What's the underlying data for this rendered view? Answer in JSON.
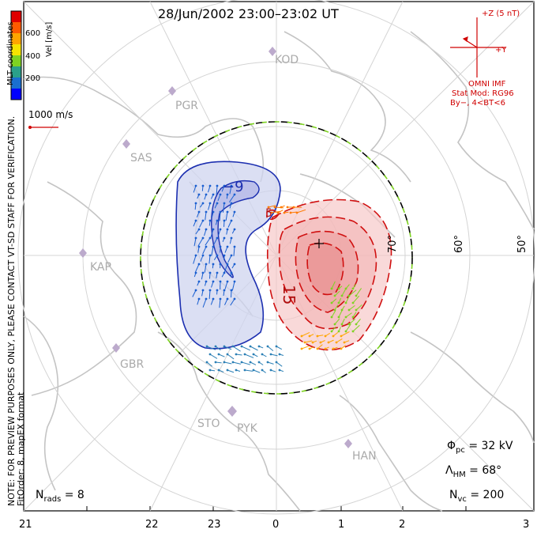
{
  "title": "28/Jun/2002 23:00–23:02 UT",
  "side_note": {
    "line1": "NOTE: FOR PREVIEW PURPOSES ONLY, PLEASE CONTACT VT-SD STAFF FOR VERIFICATION.",
    "line2": "FitOrder: 8, mapEX format",
    "coords": "MLT coordinates"
  },
  "colorbar": {
    "label": "Vel [m/s]",
    "ticks": [
      "600",
      "400",
      "200"
    ],
    "colors": [
      "#0000ff",
      "#1a6fd0",
      "#2aa08a",
      "#7ed321",
      "#f5e400",
      "#ffa500",
      "#ff5a00",
      "#e00000"
    ]
  },
  "scale": {
    "label": "1000 m/s"
  },
  "imf": {
    "z_label": "+Z (5 nT)",
    "y_label": "+Y",
    "omni": "OMNI IMF",
    "model": "Stat Mod: RG96",
    "cond": "By−, 4<BT<6"
  },
  "sites": [
    "KOD",
    "PGR",
    "SAS",
    "KAP",
    "GBR",
    "STO",
    "PYK",
    "HAN"
  ],
  "lat_labels": [
    "70°",
    "60°",
    "50°"
  ],
  "mlt_ticks": [
    "21",
    "22",
    "23",
    "0",
    "1",
    "2",
    "3"
  ],
  "contours": {
    "neg_label": "−9",
    "pos_label": "15",
    "small_label": "5"
  },
  "stats": {
    "phi": "Φ",
    "phi_sub": "pc",
    "phi_val": " = 32 kV",
    "lam": "Λ",
    "lam_sub": "HM",
    "lam_val": " = 68°",
    "nvc": "N",
    "nvc_sub": "vc",
    "nvc_val": " = 200",
    "nrads": "N",
    "nrads_sub": "rads",
    "nrads_val": " = 8"
  },
  "colors": {
    "neg": "#1c2fb0",
    "pos": "#d01010",
    "boundary_a": "#000000",
    "boundary_b": "#7ed321"
  }
}
